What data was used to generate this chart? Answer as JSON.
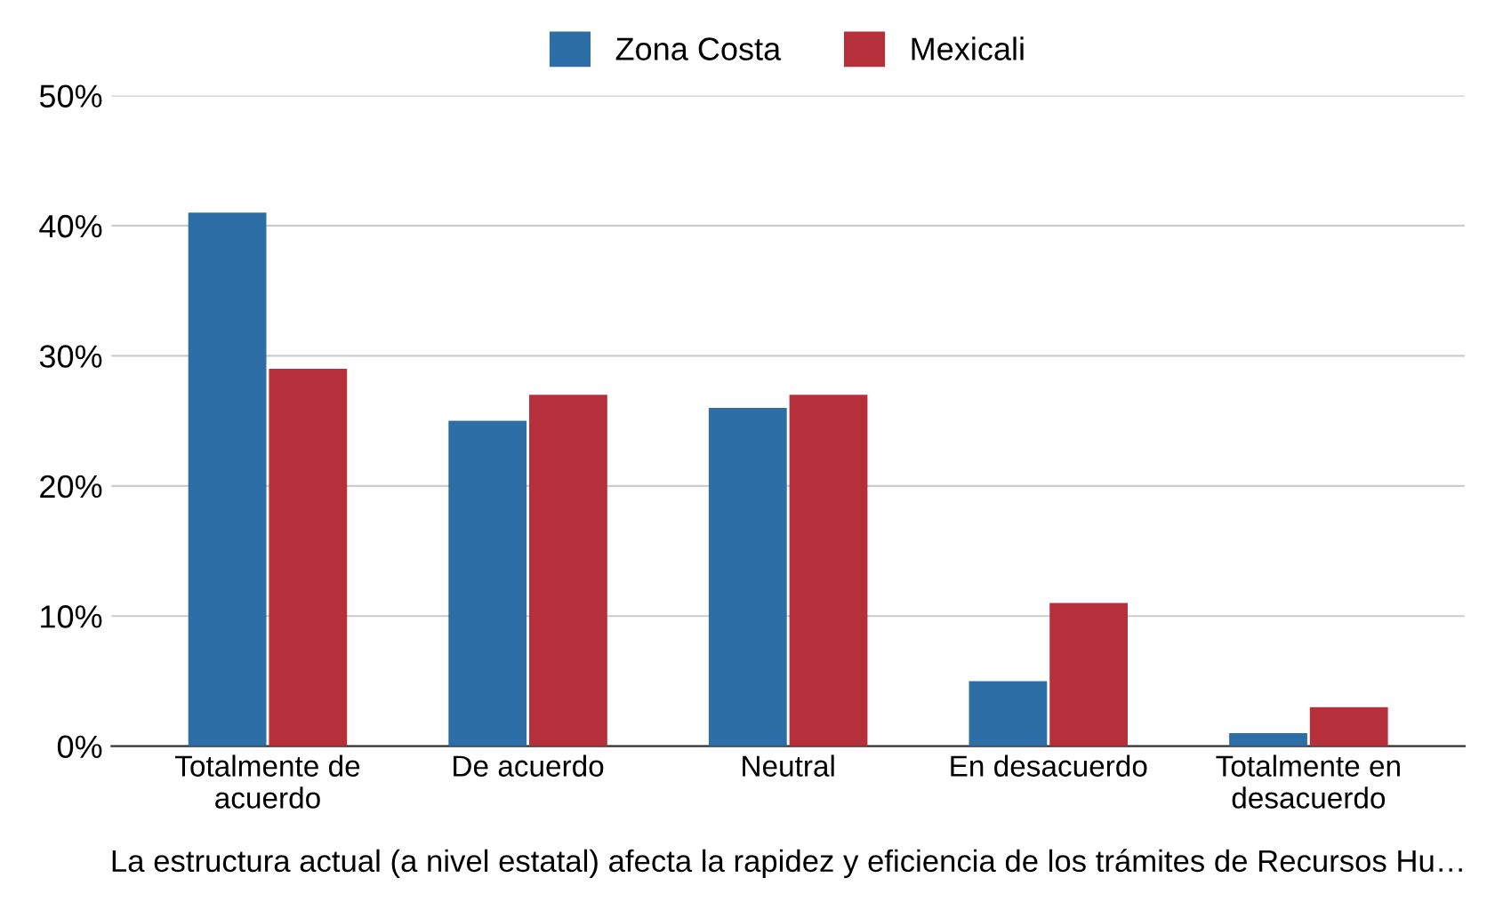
{
  "chart_data": {
    "type": "bar",
    "categories": [
      "Totalmente de\nacuerdo",
      "De acuerdo",
      "Neutral",
      "En desacuerdo",
      "Totalmente en\ndesacuerdo"
    ],
    "series": [
      {
        "name": "Zona Costa",
        "color": "#2e6ea6",
        "values": [
          41,
          25,
          26,
          5,
          1
        ]
      },
      {
        "name": "Mexicali",
        "color": "#b5303a",
        "values": [
          29,
          27,
          27,
          11,
          3
        ]
      }
    ],
    "xlabel": "La estructura actual (a nivel estatal) afecta la rapidez y eficiencia de los trámites de Recursos Hu…",
    "ylim": [
      0,
      50
    ],
    "yticks": [
      {
        "value": 0,
        "label": "0%"
      },
      {
        "value": 10,
        "label": "10%"
      },
      {
        "value": 20,
        "label": "20%"
      },
      {
        "value": 30,
        "label": "30%"
      },
      {
        "value": 40,
        "label": "40%"
      },
      {
        "value": 50,
        "label": "50%"
      }
    ],
    "grid": "y",
    "legend": "top"
  }
}
